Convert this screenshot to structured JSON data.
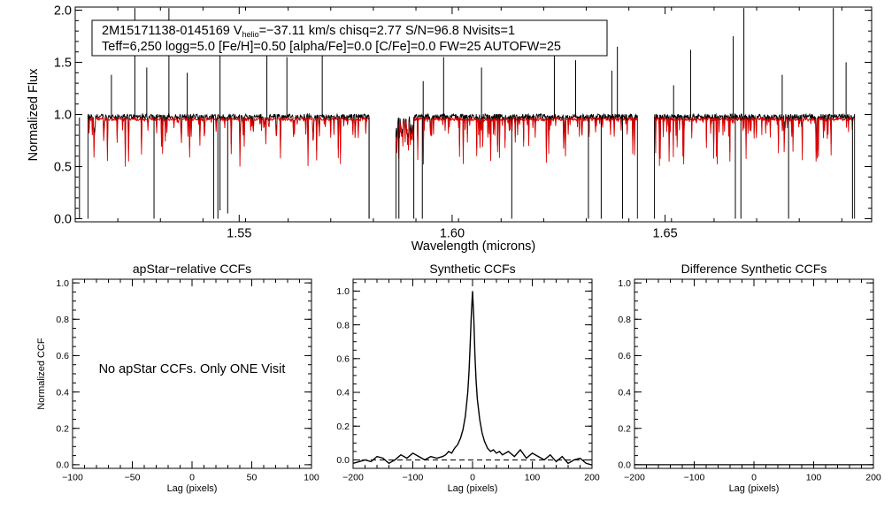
{
  "header": {
    "star_id": "2M15171138-0145169",
    "vhelio_prefix": "V",
    "vhelio_sub": "helio",
    "vhelio_rest": "=−37.11 km/s  chisq=2.77  S/N=96.8  Nvisits=1",
    "params_line": "Teff=6,250 logg=5.0 [Fe/H]=0.50 [alpha/Fe]=0.0 [C/Fe]=0.0 FW=25 AUTOFW=25"
  },
  "colors": {
    "observed": "#000000",
    "model": "#dd0000",
    "axis": "#000000"
  },
  "chart_data": [
    {
      "id": "spectrum",
      "type": "line",
      "title": "",
      "xlabel": "Wavelength (microns)",
      "ylabel": "Normalized Flux",
      "xlim": [
        1.5115,
        1.6985
      ],
      "ylim": [
        -0.03,
        2.03
      ],
      "xticks": [
        1.55,
        1.6,
        1.65
      ],
      "xtick_labels": [
        "1.55",
        "1.60",
        "1.65"
      ],
      "yticks": [
        0.0,
        0.5,
        1.0,
        1.5,
        2.0
      ],
      "ytick_labels": [
        "0.0",
        "0.5",
        "1.0",
        "1.5",
        "2.0"
      ],
      "chips": [
        [
          1.5145,
          1.5805
        ],
        [
          1.5868,
          1.6435
        ],
        [
          1.6475,
          1.6945
        ]
      ],
      "series": [
        {
          "color": "observed",
          "continuum": 0.98
        },
        {
          "color": "model",
          "continuum": 0.97
        }
      ],
      "emission_spikes": [
        [
          1.52,
          1.38
        ],
        [
          1.5255,
          2.02
        ],
        [
          1.5283,
          1.45
        ],
        [
          1.5335,
          2.02
        ],
        [
          1.5378,
          1.4
        ],
        [
          1.5455,
          1.72
        ],
        [
          1.5565,
          1.88
        ],
        [
          1.5612,
          1.55
        ],
        [
          1.5695,
          1.9
        ],
        [
          1.5932,
          1.32
        ],
        [
          1.598,
          1.55
        ],
        [
          1.6069,
          1.45
        ],
        [
          1.624,
          1.62
        ],
        [
          1.629,
          1.52
        ],
        [
          1.6375,
          1.42
        ],
        [
          1.6388,
          1.65
        ],
        [
          1.652,
          1.28
        ],
        [
          1.656,
          1.62
        ],
        [
          1.666,
          1.75
        ],
        [
          1.6685,
          2.02
        ],
        [
          1.6775,
          1.38
        ],
        [
          1.6895,
          2.02
        ],
        [
          1.6925,
          1.5
        ]
      ],
      "deep_drops": [
        [
          1.5125,
          0.0
        ],
        [
          1.53,
          0.0
        ],
        [
          1.544,
          0.0
        ],
        [
          1.545,
          0.0
        ],
        [
          1.5455,
          0.08
        ],
        [
          1.5473,
          0.05
        ],
        [
          1.5805,
          0.0
        ],
        [
          1.5875,
          0.0
        ],
        [
          1.591,
          0.0
        ],
        [
          1.593,
          0.0
        ],
        [
          1.614,
          0.0
        ],
        [
          1.632,
          0.0
        ],
        [
          1.635,
          0.0
        ],
        [
          1.64,
          0.0
        ],
        [
          1.6665,
          0.0
        ],
        [
          1.6678,
          0.0
        ],
        [
          1.679,
          0.0
        ],
        [
          1.694,
          0.0
        ]
      ]
    },
    {
      "id": "apstar_ccf",
      "type": "line",
      "title": "apStar−relative CCFs",
      "xlabel": "Lag (pixels)",
      "ylabel": "Normalized CCF",
      "xlim": [
        -100,
        100
      ],
      "ylim": [
        -0.02,
        1.02
      ],
      "xticks": [
        -100,
        -50,
        0,
        50,
        100
      ],
      "xtick_labels": [
        "−100",
        "−50",
        "0",
        "50",
        "100"
      ],
      "yticks": [
        0.0,
        0.2,
        0.4,
        0.6,
        0.8,
        1.0
      ],
      "ytick_labels": [
        "0.0",
        "0.2",
        "0.4",
        "0.6",
        "0.8",
        "1.0"
      ],
      "annotation": "No apStar CCFs.  Only ONE Visit",
      "series": []
    },
    {
      "id": "synthetic_ccf",
      "type": "line",
      "title": "Synthetic CCFs",
      "xlabel": "Lag (pixels)",
      "ylabel": "",
      "xlim": [
        -200,
        200
      ],
      "ylim": [
        -0.05,
        1.07
      ],
      "xticks": [
        -200,
        -100,
        0,
        100,
        200
      ],
      "xtick_labels": [
        "−200",
        "−100",
        "0",
        "100",
        "200"
      ],
      "yticks": [
        0.0,
        0.2,
        0.4,
        0.6,
        0.8,
        1.0
      ],
      "ytick_labels": [
        "0.0",
        "0.2",
        "0.4",
        "0.6",
        "0.8",
        "1.0"
      ],
      "baseline": 0.0,
      "series": [
        {
          "color": "observed",
          "x": [
            -200,
            -190,
            -180,
            -170,
            -160,
            -150,
            -140,
            -130,
            -120,
            -110,
            -100,
            -90,
            -80,
            -70,
            -60,
            -50,
            -45,
            -40,
            -35,
            -30,
            -25,
            -20,
            -16,
            -12,
            -8,
            -6,
            -4,
            -2,
            0,
            2,
            4,
            6,
            8,
            12,
            16,
            20,
            25,
            30,
            35,
            40,
            45,
            50,
            60,
            70,
            80,
            90,
            100,
            110,
            120,
            130,
            140,
            150,
            160,
            170,
            180,
            190,
            200
          ],
          "y": [
            -0.02,
            -0.01,
            0.0,
            -0.01,
            0.02,
            0.01,
            -0.02,
            0.0,
            0.03,
            0.01,
            0.04,
            0.02,
            0.0,
            0.02,
            0.01,
            0.02,
            0.03,
            0.05,
            0.04,
            0.07,
            0.09,
            0.13,
            0.18,
            0.26,
            0.4,
            0.52,
            0.68,
            0.86,
            1.0,
            0.84,
            0.62,
            0.47,
            0.36,
            0.24,
            0.16,
            0.11,
            0.07,
            0.05,
            0.06,
            0.04,
            0.05,
            0.03,
            0.05,
            0.02,
            0.06,
            0.01,
            0.04,
            0.02,
            0.0,
            0.03,
            -0.01,
            0.02,
            -0.02,
            0.0,
            0.01,
            -0.02,
            -0.03
          ]
        }
      ]
    },
    {
      "id": "difference_ccf",
      "type": "line",
      "title": "Difference Synthetic CCFs",
      "xlabel": "Lag (pixels)",
      "ylabel": "",
      "xlim": [
        -200,
        200
      ],
      "ylim": [
        -0.02,
        1.02
      ],
      "xticks": [
        -200,
        -100,
        0,
        100,
        200
      ],
      "xtick_labels": [
        "−200",
        "−100",
        "0",
        "100",
        "200"
      ],
      "yticks": [
        0.0,
        0.2,
        0.4,
        0.6,
        0.8,
        1.0
      ],
      "ytick_labels": [
        "0.0",
        "0.2",
        "0.4",
        "0.6",
        "0.8",
        "1.0"
      ],
      "series": [
        {
          "color": "observed",
          "x": [
            -200,
            200
          ],
          "y": [
            0.0,
            0.0
          ]
        }
      ]
    }
  ]
}
